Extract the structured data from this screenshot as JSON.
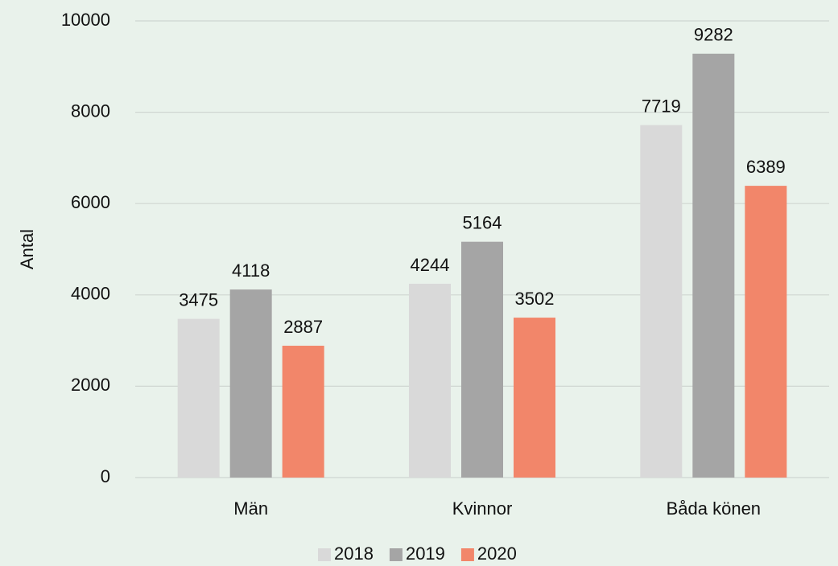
{
  "chart_data": {
    "type": "bar",
    "y_label": "Antal",
    "categories": [
      "Män",
      "Kvinnor",
      "Båda könen"
    ],
    "series": [
      {
        "name": "2018",
        "color": "#d9d9d9",
        "values": [
          3475,
          4244,
          7719
        ]
      },
      {
        "name": "2019",
        "color": "#a5a5a5",
        "values": [
          4118,
          5164,
          9282
        ]
      },
      {
        "name": "2020",
        "color": "#f2866a",
        "values": [
          2887,
          3502,
          6389
        ]
      }
    ],
    "ylim": [
      0,
      10000
    ],
    "yticks": [
      0,
      2000,
      4000,
      6000,
      8000,
      10000
    ],
    "grid": true,
    "legend": "bottom"
  }
}
